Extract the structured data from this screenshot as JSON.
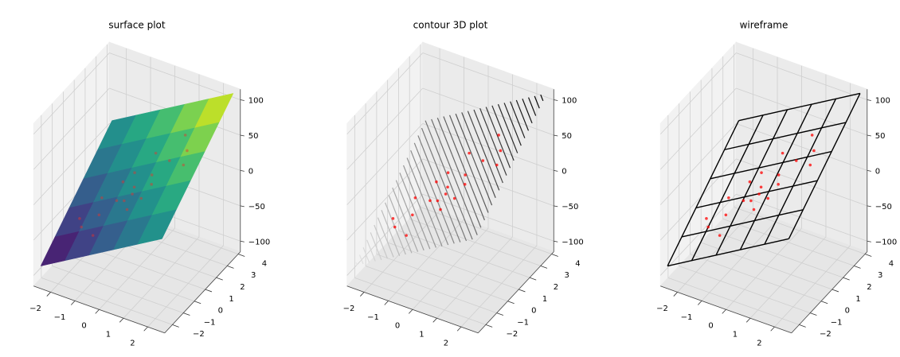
{
  "chart_data": [
    {
      "type": "surface",
      "title": "surface plot",
      "cmap": "viridis",
      "x": [
        -2.5,
        -1.5,
        -0.5,
        0.5,
        1.5,
        2.5
      ],
      "y": [
        -2.5,
        -1.2,
        0.1,
        1.4,
        2.7,
        4.0
      ],
      "z": [
        [
          -87.5,
          -67.5,
          -47.5,
          -27.5,
          -7.5,
          12.5
        ],
        [
          -68,
          -48,
          -28,
          -8,
          12,
          32
        ],
        [
          -48.5,
          -28.5,
          -8.5,
          11.5,
          31.5,
          51.5
        ],
        [
          -29,
          -9,
          11,
          31,
          51,
          71
        ],
        [
          -9.5,
          10.5,
          30.5,
          50.5,
          70.5,
          90.5
        ],
        [
          10,
          30,
          50,
          70,
          90,
          110
        ]
      ],
      "scatter": {
        "color": "#e8302a",
        "x": [
          -1.5,
          -1,
          -0.5,
          0,
          0.5,
          1,
          1.5,
          -1.2,
          0.2,
          -0.3,
          0.8,
          1.2,
          -0.8,
          0.1,
          -0.1,
          0.6,
          -0.6,
          1.8,
          -1.8,
          0.3
        ],
        "y": [
          -1,
          -0.5,
          0,
          0.5,
          1,
          1.5,
          2,
          0.2,
          -0.6,
          1.2,
          0.3,
          2.5,
          -1.5,
          0.1,
          -0.2,
          -0.2,
          0.8,
          1,
          -0.5,
          1.8
        ],
        "z": [
          -45,
          -30,
          -12,
          5,
          20,
          38,
          50,
          -20,
          -6,
          10,
          22,
          60,
          -40,
          3,
          -4,
          8,
          0,
          50,
          -45,
          35
        ]
      },
      "xlim": [
        -2.7,
        2.7
      ],
      "ylim": [
        -2.7,
        4.2
      ],
      "zlim": [
        -115,
        115
      ],
      "xticks": [
        {
          "value": -2,
          "label": "−2"
        },
        {
          "value": -1,
          "label": "−1"
        },
        0,
        1,
        2
      ],
      "yticks": [
        {
          "value": -2,
          "label": "−2"
        },
        {
          "value": -1,
          "label": "−1"
        },
        0,
        1,
        2,
        3,
        4
      ],
      "zticks": [
        {
          "value": -100,
          "label": "−100"
        },
        {
          "value": -50,
          "label": "−50"
        },
        0,
        50,
        100
      ]
    },
    {
      "type": "contour",
      "title": "contour 3D plot",
      "cmap": "binary",
      "x": [
        -2.5,
        -1.5,
        -0.5,
        0.5,
        1.5,
        2.5
      ],
      "y": [
        -2.5,
        -1.2,
        0.1,
        1.4,
        2.7,
        4.0
      ],
      "z": [
        [
          -87.5,
          -67.5,
          -47.5,
          -27.5,
          -7.5,
          12.5
        ],
        [
          -68,
          -48,
          -28,
          -8,
          12,
          32
        ],
        [
          -48.5,
          -28.5,
          -8.5,
          11.5,
          31.5,
          51.5
        ],
        [
          -29,
          -9,
          11,
          31,
          51,
          71
        ],
        [
          -9.5,
          10.5,
          30.5,
          50.5,
          70.5,
          90.5
        ],
        [
          10,
          30,
          50,
          70,
          90,
          110
        ]
      ],
      "levels": [
        -85,
        -80,
        -75,
        -70,
        -65,
        -60,
        -55,
        -50,
        -45,
        -40,
        -35,
        -30,
        -25,
        -20,
        -15,
        -10,
        -5,
        0,
        5,
        10,
        15,
        20,
        25,
        30,
        35,
        40,
        45,
        50,
        55,
        60,
        65,
        70,
        75,
        80,
        85,
        90,
        95,
        100,
        105
      ],
      "scatter": {
        "color": "#ff0000",
        "x": [
          -1.5,
          -1,
          -0.5,
          0,
          0.5,
          1,
          1.5,
          -1.2,
          0.2,
          -0.3,
          0.8,
          1.2,
          -0.8,
          0.1,
          -0.1,
          0.6,
          -0.6,
          1.8,
          -1.8,
          0.3
        ],
        "y": [
          -1,
          -0.5,
          0,
          0.5,
          1,
          1.5,
          2,
          0.2,
          -0.6,
          1.2,
          0.3,
          2.5,
          -1.5,
          0.1,
          -0.2,
          -0.2,
          0.8,
          1,
          -0.5,
          1.8
        ],
        "z": [
          -45,
          -30,
          -12,
          5,
          20,
          38,
          50,
          -20,
          -6,
          10,
          22,
          60,
          -40,
          3,
          -4,
          8,
          0,
          50,
          -45,
          35
        ]
      },
      "xlim": [
        -2.7,
        2.7
      ],
      "ylim": [
        -2.7,
        4.2
      ],
      "zlim": [
        -115,
        115
      ],
      "xticks": [
        {
          "value": -2,
          "label": "−2"
        },
        {
          "value": -1,
          "label": "−1"
        },
        0,
        1,
        2
      ],
      "yticks": [
        {
          "value": -2,
          "label": "−2"
        },
        {
          "value": -1,
          "label": "−1"
        },
        0,
        1,
        2,
        3,
        4
      ],
      "zticks": [
        {
          "value": -100,
          "label": "−100"
        },
        {
          "value": -50,
          "label": "−50"
        },
        0,
        50,
        100
      ]
    },
    {
      "type": "wireframe",
      "title": "wireframe",
      "color": "#000000",
      "x": [
        -2.5,
        -1.5,
        -0.5,
        0.5,
        1.5,
        2.5
      ],
      "y": [
        -2.5,
        -1.2,
        0.1,
        1.4,
        2.7,
        4.0
      ],
      "z": [
        [
          -87.5,
          -67.5,
          -47.5,
          -27.5,
          -7.5,
          12.5
        ],
        [
          -68,
          -48,
          -28,
          -8,
          12,
          32
        ],
        [
          -48.5,
          -28.5,
          -8.5,
          11.5,
          31.5,
          51.5
        ],
        [
          -29,
          -9,
          11,
          31,
          51,
          71
        ],
        [
          -9.5,
          10.5,
          30.5,
          50.5,
          70.5,
          90.5
        ],
        [
          10,
          30,
          50,
          70,
          90,
          110
        ]
      ],
      "scatter": {
        "color": "#ff0000",
        "x": [
          -1.5,
          -1,
          -0.5,
          0,
          0.5,
          1,
          1.5,
          -1.2,
          0.2,
          -0.3,
          0.8,
          1.2,
          -0.8,
          0.1,
          -0.1,
          0.6,
          -0.6,
          1.8,
          -1.8,
          0.3
        ],
        "y": [
          -1,
          -0.5,
          0,
          0.5,
          1,
          1.5,
          2,
          0.2,
          -0.6,
          1.2,
          0.3,
          2.5,
          -1.5,
          0.1,
          -0.2,
          -0.2,
          0.8,
          1,
          -0.5,
          1.8
        ],
        "z": [
          -45,
          -30,
          -12,
          5,
          20,
          38,
          50,
          -20,
          -6,
          10,
          22,
          60,
          -40,
          3,
          -4,
          8,
          0,
          50,
          -45,
          35
        ]
      },
      "xlim": [
        -2.7,
        2.7
      ],
      "ylim": [
        -2.7,
        4.2
      ],
      "zlim": [
        -115,
        115
      ],
      "xticks": [
        {
          "value": -2,
          "label": "−2"
        },
        {
          "value": -1,
          "label": "−1"
        },
        0,
        1,
        2
      ],
      "yticks": [
        {
          "value": -2,
          "label": "−2"
        },
        {
          "value": -1,
          "label": "−1"
        },
        0,
        1,
        2,
        3,
        4
      ],
      "zticks": [
        {
          "value": -100,
          "label": "−100"
        },
        {
          "value": -50,
          "label": "−50"
        },
        0,
        50,
        100
      ]
    }
  ]
}
